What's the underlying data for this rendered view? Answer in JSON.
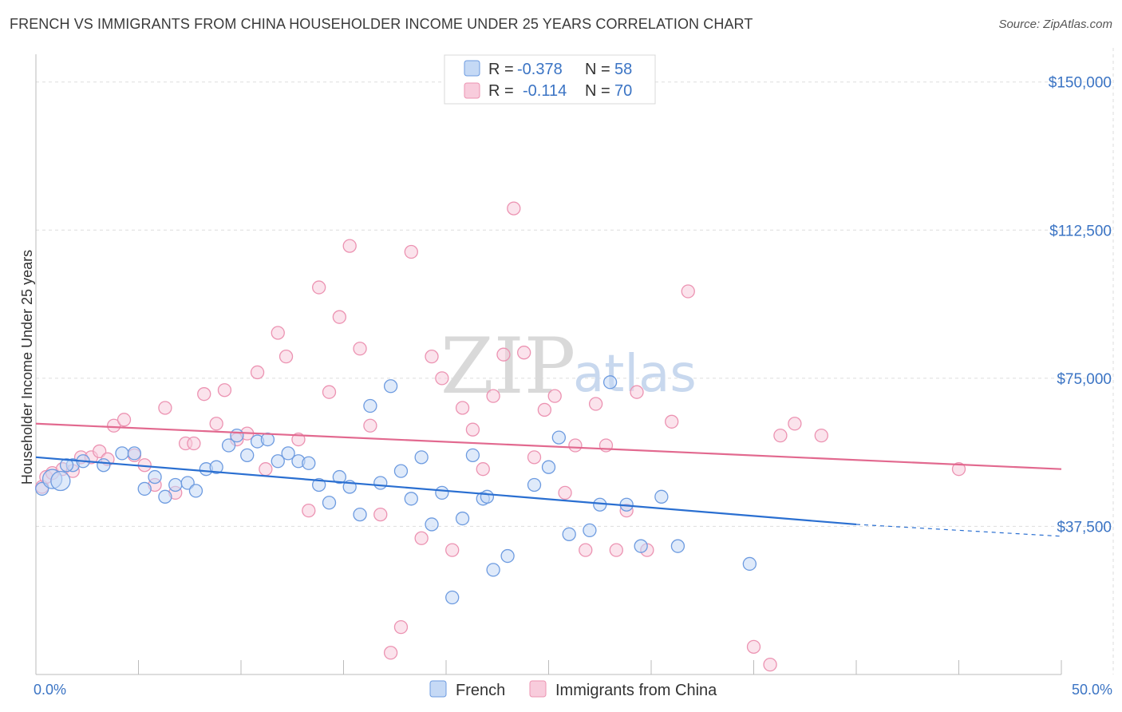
{
  "title": "FRENCH VS IMMIGRANTS FROM CHINA HOUSEHOLDER INCOME UNDER 25 YEARS CORRELATION CHART",
  "source": "Source: ZipAtlas.com",
  "watermark": {
    "zip": "ZIP",
    "atlas": "atlas"
  },
  "colors": {
    "french_fill": "#c5d9f5",
    "french_stroke": "#6d9be0",
    "french_line": "#2a6fd1",
    "china_fill": "#f8ccdc",
    "china_stroke": "#ec93b2",
    "china_line": "#e2698f",
    "grid": "#dddddd",
    "axis_text": "#3b74c4"
  },
  "legend_top": {
    "rows": [
      {
        "r_label": "R =",
        "r_value": "-0.378",
        "n_label": "N =",
        "n_value": "58"
      },
      {
        "r_label": "R =",
        "r_value": "-0.114",
        "n_label": "N =",
        "n_value": "70"
      }
    ]
  },
  "legend_bottom": [
    "French",
    "Immigrants from China"
  ],
  "chart_data": {
    "type": "scatter",
    "title": "FRENCH VS IMMIGRANTS FROM CHINA HOUSEHOLDER INCOME UNDER 25 YEARS CORRELATION CHART",
    "xlabel": "",
    "ylabel": "Householder Income Under 25 years",
    "xlim": [
      0,
      50
    ],
    "ylim": [
      0,
      155000
    ],
    "x_tick_labels": [
      "0.0%",
      "50.0%"
    ],
    "y_ticks": [
      37500,
      75000,
      112500,
      150000
    ],
    "y_tick_labels": [
      "$37,500",
      "$75,000",
      "$112,500",
      "$150,000"
    ],
    "series": [
      {
        "name": "French",
        "r": -0.378,
        "n": 58,
        "trend": {
          "x": [
            0,
            40
          ],
          "y": [
            55000,
            38000
          ],
          "dashed_to": [
            50,
            35000
          ]
        },
        "points": [
          [
            0.3,
            47000
          ],
          [
            0.8,
            49500
          ],
          [
            1.2,
            49000
          ],
          [
            1.8,
            53000
          ],
          [
            2.3,
            54000
          ],
          [
            3.3,
            53000
          ],
          [
            4.2,
            56000
          ],
          [
            4.8,
            56000
          ],
          [
            5.3,
            47000
          ],
          [
            5.8,
            50000
          ],
          [
            6.3,
            45000
          ],
          [
            6.8,
            48000
          ],
          [
            7.4,
            48500
          ],
          [
            7.8,
            46500
          ],
          [
            8.3,
            52000
          ],
          [
            8.8,
            52500
          ],
          [
            9.4,
            58000
          ],
          [
            9.8,
            60500
          ],
          [
            10.3,
            55500
          ],
          [
            10.8,
            59000
          ],
          [
            11.3,
            59500
          ],
          [
            11.8,
            54000
          ],
          [
            12.3,
            56000
          ],
          [
            12.8,
            54000
          ],
          [
            13.3,
            53500
          ],
          [
            13.8,
            48000
          ],
          [
            14.3,
            43500
          ],
          [
            14.8,
            50000
          ],
          [
            15.3,
            47500
          ],
          [
            15.8,
            40500
          ],
          [
            16.3,
            68000
          ],
          [
            16.8,
            48500
          ],
          [
            17.3,
            73000
          ],
          [
            17.8,
            51500
          ],
          [
            18.3,
            44500
          ],
          [
            18.8,
            55000
          ],
          [
            19.3,
            38000
          ],
          [
            19.8,
            46000
          ],
          [
            20.3,
            19500
          ],
          [
            20.8,
            39500
          ],
          [
            21.3,
            55500
          ],
          [
            21.8,
            44500
          ],
          [
            22.3,
            26500
          ],
          [
            23.0,
            30000
          ],
          [
            24.3,
            48000
          ],
          [
            25.0,
            52500
          ],
          [
            25.5,
            60000
          ],
          [
            26.0,
            35500
          ],
          [
            27.0,
            36500
          ],
          [
            27.5,
            43000
          ],
          [
            28.0,
            74000
          ],
          [
            28.8,
            43000
          ],
          [
            29.5,
            32500
          ],
          [
            30.5,
            45000
          ],
          [
            31.3,
            32500
          ],
          [
            34.8,
            28000
          ],
          [
            1.5,
            53000
          ],
          [
            22.0,
            45000
          ]
        ]
      },
      {
        "name": "Immigrants from China",
        "r": -0.114,
        "n": 70,
        "trend": {
          "x": [
            0,
            50
          ],
          "y": [
            63500,
            52000
          ]
        },
        "points": [
          [
            0.3,
            47500
          ],
          [
            0.5,
            50000
          ],
          [
            0.8,
            51000
          ],
          [
            1.3,
            52000
          ],
          [
            1.8,
            51500
          ],
          [
            2.2,
            55000
          ],
          [
            2.7,
            55000
          ],
          [
            3.1,
            56500
          ],
          [
            3.5,
            54500
          ],
          [
            3.8,
            63000
          ],
          [
            4.3,
            64500
          ],
          [
            4.8,
            55500
          ],
          [
            5.3,
            53000
          ],
          [
            5.8,
            48000
          ],
          [
            6.3,
            67500
          ],
          [
            6.8,
            46000
          ],
          [
            7.3,
            58500
          ],
          [
            7.7,
            58500
          ],
          [
            8.2,
            71000
          ],
          [
            8.8,
            63500
          ],
          [
            9.2,
            72000
          ],
          [
            9.8,
            59500
          ],
          [
            10.3,
            61000
          ],
          [
            10.8,
            76500
          ],
          [
            11.2,
            52000
          ],
          [
            11.8,
            86500
          ],
          [
            12.2,
            80500
          ],
          [
            12.8,
            59500
          ],
          [
            13.3,
            41500
          ],
          [
            13.8,
            98000
          ],
          [
            14.3,
            71500
          ],
          [
            14.8,
            90500
          ],
          [
            15.3,
            108500
          ],
          [
            15.8,
            82500
          ],
          [
            16.3,
            63000
          ],
          [
            16.8,
            40500
          ],
          [
            17.3,
            5500
          ],
          [
            17.8,
            12000
          ],
          [
            18.3,
            107000
          ],
          [
            18.8,
            34500
          ],
          [
            19.3,
            80500
          ],
          [
            19.8,
            75000
          ],
          [
            20.3,
            31500
          ],
          [
            20.8,
            67500
          ],
          [
            21.3,
            62000
          ],
          [
            21.8,
            52000
          ],
          [
            22.3,
            70500
          ],
          [
            22.8,
            81000
          ],
          [
            23.3,
            118000
          ],
          [
            23.8,
            81500
          ],
          [
            24.3,
            55000
          ],
          [
            24.8,
            67000
          ],
          [
            25.3,
            70500
          ],
          [
            25.8,
            46000
          ],
          [
            26.3,
            58000
          ],
          [
            26.8,
            31500
          ],
          [
            27.3,
            68500
          ],
          [
            27.8,
            58000
          ],
          [
            28.3,
            31500
          ],
          [
            28.8,
            41500
          ],
          [
            29.3,
            71500
          ],
          [
            29.8,
            31500
          ],
          [
            31.0,
            64000
          ],
          [
            31.8,
            97000
          ],
          [
            35.0,
            7000
          ],
          [
            35.8,
            2500
          ],
          [
            36.3,
            60500
          ],
          [
            37.0,
            63500
          ],
          [
            38.3,
            60500
          ],
          [
            45.0,
            52000
          ]
        ]
      }
    ]
  }
}
